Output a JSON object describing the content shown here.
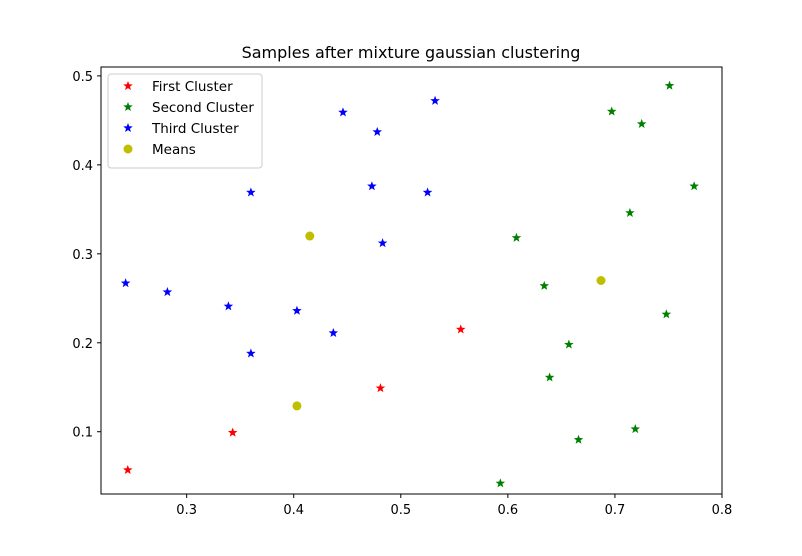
{
  "chart_data": {
    "type": "scatter",
    "title": "Samples after mixture gaussian clustering",
    "xlabel": "",
    "ylabel": "",
    "xlim": [
      0.22,
      0.8
    ],
    "ylim": [
      0.03,
      0.51
    ],
    "x_ticks": [
      0.3,
      0.4,
      0.5,
      0.6,
      0.7,
      0.8
    ],
    "y_ticks": [
      0.1,
      0.2,
      0.3,
      0.4,
      0.5
    ],
    "x_tick_labels": [
      "0.3",
      "0.4",
      "0.5",
      "0.6",
      "0.7",
      "0.8"
    ],
    "y_tick_labels": [
      "0.1",
      "0.2",
      "0.3",
      "0.4",
      "0.5"
    ],
    "grid": false,
    "legend_position": "top-left",
    "series": [
      {
        "name": "First Cluster",
        "color": "#ff0000",
        "marker": "star",
        "points": [
          [
            0.245,
            0.057
          ],
          [
            0.343,
            0.099
          ],
          [
            0.481,
            0.149
          ],
          [
            0.556,
            0.215
          ]
        ]
      },
      {
        "name": "Second Cluster",
        "color": "#008000",
        "marker": "star",
        "points": [
          [
            0.593,
            0.042
          ],
          [
            0.666,
            0.091
          ],
          [
            0.719,
            0.103
          ],
          [
            0.639,
            0.161
          ],
          [
            0.657,
            0.198
          ],
          [
            0.748,
            0.232
          ],
          [
            0.634,
            0.264
          ],
          [
            0.608,
            0.318
          ],
          [
            0.714,
            0.346
          ],
          [
            0.774,
            0.376
          ],
          [
            0.697,
            0.46
          ],
          [
            0.725,
            0.446
          ],
          [
            0.751,
            0.489
          ]
        ]
      },
      {
        "name": "Third Cluster",
        "color": "#0000ff",
        "marker": "star",
        "points": [
          [
            0.243,
            0.267
          ],
          [
            0.282,
            0.257
          ],
          [
            0.339,
            0.241
          ],
          [
            0.36,
            0.188
          ],
          [
            0.403,
            0.236
          ],
          [
            0.437,
            0.211
          ],
          [
            0.36,
            0.369
          ],
          [
            0.446,
            0.459
          ],
          [
            0.478,
            0.437
          ],
          [
            0.473,
            0.376
          ],
          [
            0.483,
            0.312
          ],
          [
            0.525,
            0.369
          ],
          [
            0.532,
            0.472
          ]
        ]
      },
      {
        "name": "Means",
        "color": "#bfbf00",
        "marker": "circle",
        "points": [
          [
            0.403,
            0.129
          ],
          [
            0.415,
            0.32
          ],
          [
            0.687,
            0.27
          ]
        ]
      }
    ]
  }
}
